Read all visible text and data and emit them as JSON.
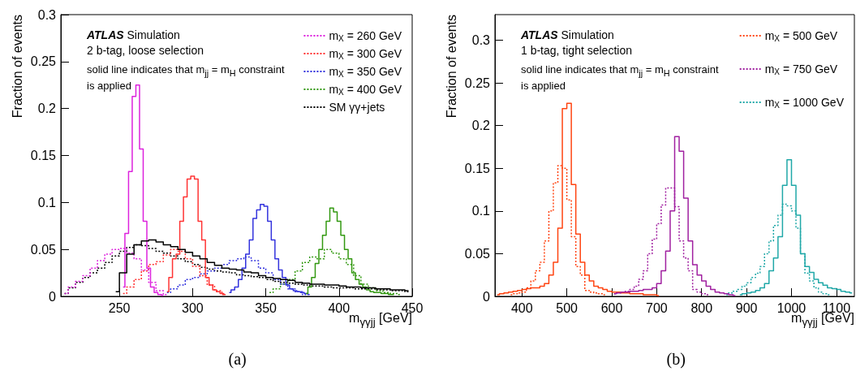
{
  "chart_data": [
    {
      "type": "step",
      "title": "ATLAS Simulation",
      "subtitle": "2 b-tag, loose selection",
      "annotations": [
        "solid line indicates that m$_{jj}$ = m$_{H}$ constraint is applied",
        "(a)"
      ],
      "xlabel": "m$_{γγjj}$ [GeV]",
      "ylabel": "Fraction of events",
      "xlim": [
        210,
        450
      ],
      "xticks": [
        250,
        300,
        350,
        400,
        450
      ],
      "ylim": [
        0,
        0.3
      ],
      "yticks": [
        0,
        0.05,
        0.1,
        0.15,
        0.2,
        0.25,
        0.3
      ],
      "grid": false,
      "legend": "top right",
      "series": [
        {
          "name": "m$_{X}$ = 260 GeV",
          "color": "#dd22dd",
          "line_style": "dashed",
          "x": [
            212.5,
            217.5,
            222.5,
            227.5,
            232.5,
            237.5,
            242.5,
            247.5,
            252.5,
            257.5,
            262.5,
            267.5,
            272.5,
            277.5,
            282.5
          ],
          "values": [
            0.003,
            0.01,
            0.016,
            0.022,
            0.03,
            0.038,
            0.045,
            0.05,
            0.051,
            0.046,
            0.04,
            0.028,
            0.015,
            0.006,
            0.002
          ]
        },
        {
          "name": "m$_{X}$ = 300 GeV",
          "color": "#ff3333",
          "line_style": "dashed",
          "x": [
            252.5,
            257.5,
            262.5,
            267.5,
            272.5,
            277.5,
            282.5,
            287.5,
            292.5,
            297.5,
            302.5,
            307.5,
            312.5,
            317.5,
            322.5
          ],
          "values": [
            0.003,
            0.01,
            0.018,
            0.027,
            0.034,
            0.037,
            0.044,
            0.05,
            0.048,
            0.04,
            0.032,
            0.022,
            0.012,
            0.006,
            0.002
          ]
        },
        {
          "name": "m$_{X}$ = 350 GeV",
          "color": "#3333dd",
          "line_style": "dashed",
          "x": [
            282.5,
            287.5,
            292.5,
            297.5,
            302.5,
            307.5,
            312.5,
            317.5,
            322.5,
            327.5,
            332.5,
            337.5,
            342.5,
            347.5,
            352.5,
            357.5,
            362.5,
            367.5,
            372.5,
            377.5
          ],
          "values": [
            0.004,
            0.008,
            0.012,
            0.018,
            0.02,
            0.024,
            0.027,
            0.03,
            0.034,
            0.038,
            0.04,
            0.042,
            0.038,
            0.03,
            0.025,
            0.018,
            0.013,
            0.008,
            0.005,
            0.002
          ]
        },
        {
          "name": "m$_{X}$ = 400 GeV",
          "color": "#339911",
          "line_style": "dashed",
          "x": [
            352.5,
            357.5,
            362.5,
            367.5,
            372.5,
            377.5,
            382.5,
            387.5,
            392.5,
            397.5,
            402.5,
            407.5,
            412.5,
            417.5,
            422.5,
            427.5,
            432.5,
            437.5,
            442.5
          ],
          "values": [
            0.004,
            0.008,
            0.013,
            0.018,
            0.027,
            0.036,
            0.042,
            0.04,
            0.05,
            0.046,
            0.04,
            0.034,
            0.022,
            0.013,
            0.009,
            0.006,
            0.004,
            0.003,
            0.002
          ]
        },
        {
          "name": "SM γγ+jets",
          "color": "#000000",
          "line_style": "dashed",
          "x": [
            212.5,
            217.5,
            222.5,
            227.5,
            232.5,
            237.5,
            242.5,
            247.5,
            252.5,
            257.5,
            262.5,
            267.5,
            272.5,
            277.5,
            282.5,
            287.5,
            292.5,
            297.5,
            302.5,
            307.5,
            312.5,
            317.5,
            322.5,
            327.5,
            332.5,
            337.5,
            342.5,
            347.5,
            352.5,
            357.5,
            362.5,
            367.5,
            372.5,
            377.5,
            382.5,
            387.5,
            392.5,
            397.5,
            402.5,
            407.5,
            412.5,
            417.5,
            422.5,
            427.5,
            432.5,
            437.5,
            442.5,
            447.5
          ],
          "values": [
            0.003,
            0.009,
            0.015,
            0.02,
            0.025,
            0.03,
            0.036,
            0.043,
            0.048,
            0.052,
            0.055,
            0.054,
            0.051,
            0.048,
            0.046,
            0.043,
            0.04,
            0.037,
            0.034,
            0.031,
            0.029,
            0.027,
            0.026,
            0.025,
            0.023,
            0.022,
            0.021,
            0.02,
            0.018,
            0.016,
            0.015,
            0.014,
            0.013,
            0.012,
            0.011,
            0.011,
            0.01,
            0.009,
            0.009,
            0.009,
            0.008,
            0.008,
            0.008,
            0.007,
            0.007,
            0.006,
            0.006,
            0.005
          ]
        },
        {
          "color": "#dd22dd",
          "line_style": "solid",
          "x": [
            252.5,
            255,
            257.5,
            260,
            262.5,
            265,
            267.5,
            270,
            272.5,
            275,
            277.5,
            280
          ],
          "values": [
            0.01,
            0.067,
            0.133,
            0.213,
            0.225,
            0.157,
            0.08,
            0.03,
            0.01,
            0.004,
            0.002,
            0.001
          ]
        },
        {
          "color": "#ff3333",
          "line_style": "solid",
          "x": [
            282.5,
            285,
            287.5,
            290,
            292.5,
            295,
            297.5,
            300,
            302.5,
            305,
            307.5,
            310,
            312.5,
            315,
            317.5,
            320,
            322.5
          ],
          "values": [
            0.005,
            0.02,
            0.04,
            0.045,
            0.08,
            0.106,
            0.125,
            0.128,
            0.125,
            0.08,
            0.06,
            0.02,
            0.012,
            0.007,
            0.005,
            0.003,
            0.002
          ]
        },
        {
          "color": "#3333dd",
          "line_style": "solid",
          "x": [
            325,
            327.5,
            330,
            332.5,
            335,
            337.5,
            340,
            342.5,
            345,
            347.5,
            350,
            352.5,
            355,
            357.5,
            360,
            362.5,
            365,
            367.5,
            370,
            372.5,
            375,
            377.5,
            380
          ],
          "values": [
            0.004,
            0.007,
            0.01,
            0.018,
            0.03,
            0.045,
            0.06,
            0.083,
            0.092,
            0.098,
            0.096,
            0.08,
            0.06,
            0.04,
            0.028,
            0.02,
            0.012,
            0.008,
            0.006,
            0.005,
            0.004,
            0.003,
            0.002
          ]
        },
        {
          "color": "#339911",
          "line_style": "solid",
          "x": [
            377.5,
            380,
            382.5,
            385,
            387.5,
            390,
            392.5,
            395,
            397.5,
            400,
            402.5,
            405,
            407.5,
            410,
            412.5,
            415,
            417.5,
            420,
            422.5,
            425,
            427.5,
            430,
            432.5,
            435,
            437.5
          ],
          "values": [
            0.003,
            0.01,
            0.02,
            0.035,
            0.05,
            0.065,
            0.08,
            0.094,
            0.09,
            0.08,
            0.065,
            0.05,
            0.04,
            0.025,
            0.018,
            0.013,
            0.01,
            0.007,
            0.005,
            0.004,
            0.004,
            0.003,
            0.003,
            0.002,
            0.002
          ]
        },
        {
          "color": "#000000",
          "line_style": "solid",
          "x": [
            247.5,
            252.5,
            257.5,
            262.5,
            267.5,
            272.5,
            277.5,
            282.5,
            287.5,
            292.5,
            297.5,
            302.5,
            307.5,
            312.5,
            317.5,
            322.5,
            327.5,
            332.5,
            337.5,
            342.5,
            347.5,
            352.5,
            357.5,
            362.5,
            367.5,
            372.5,
            377.5,
            382.5,
            387.5,
            392.5,
            397.5,
            402.5,
            407.5,
            412.5,
            417.5,
            422.5,
            427.5,
            432.5,
            437.5,
            442.5,
            447.5
          ],
          "values": [
            0.005,
            0.025,
            0.045,
            0.055,
            0.059,
            0.06,
            0.058,
            0.055,
            0.053,
            0.05,
            0.047,
            0.043,
            0.04,
            0.036,
            0.033,
            0.03,
            0.029,
            0.028,
            0.026,
            0.025,
            0.022,
            0.02,
            0.019,
            0.018,
            0.017,
            0.015,
            0.014,
            0.013,
            0.013,
            0.012,
            0.012,
            0.011,
            0.01,
            0.01,
            0.009,
            0.009,
            0.008,
            0.008,
            0.007,
            0.007,
            0.006
          ]
        }
      ]
    },
    {
      "type": "step",
      "title": "ATLAS Simulation",
      "subtitle": "1 b-tag, tight selection",
      "annotations": [
        "solid line indicates that m$_{jj}$ = m$_{H}$ constraint is applied",
        "(b)"
      ],
      "xlabel": "m$_{γγjj}$ [GeV]",
      "ylabel": "Fraction of events",
      "xlim": [
        340,
        1140
      ],
      "xticks": [
        400,
        500,
        600,
        700,
        800,
        900,
        1000,
        1100
      ],
      "ylim": [
        0,
        0.33
      ],
      "yticks": [
        0,
        0.05,
        0.1,
        0.15,
        0.2,
        0.25,
        0.3
      ],
      "grid": false,
      "legend": "top right",
      "series": [
        {
          "name": "m$_{X}$ = 500 GeV",
          "color": "#ff4411",
          "line_style": "dashed",
          "x": [
            375,
            385,
            395,
            405,
            415,
            425,
            435,
            445,
            455,
            465,
            475,
            485,
            495,
            505,
            515,
            525,
            535,
            545,
            555,
            565,
            575,
            585
          ],
          "values": [
            0.002,
            0.003,
            0.004,
            0.005,
            0.01,
            0.018,
            0.03,
            0.04,
            0.065,
            0.1,
            0.133,
            0.153,
            0.15,
            0.113,
            0.07,
            0.035,
            0.025,
            0.007,
            0.005,
            0.004,
            0.003,
            0.002
          ]
        },
        {
          "name": "m$_{X}$ = 750 GeV",
          "color": "#a020a0",
          "line_style": "dashed",
          "x": [
            605,
            615,
            625,
            635,
            645,
            655,
            665,
            675,
            685,
            695,
            705,
            715,
            725,
            735,
            745,
            755,
            765,
            775,
            785,
            795,
            805,
            815
          ],
          "values": [
            0.003,
            0.004,
            0.005,
            0.006,
            0.008,
            0.012,
            0.02,
            0.03,
            0.05,
            0.067,
            0.085,
            0.107,
            0.127,
            0.127,
            0.105,
            0.065,
            0.045,
            0.03,
            0.008,
            0.005,
            0.003,
            0.002
          ]
        },
        {
          "name": "m$_{X}$ = 1000 GeV",
          "color": "#20a8a8",
          "line_style": "dashed",
          "x": [
            855,
            865,
            875,
            885,
            895,
            905,
            915,
            925,
            935,
            945,
            955,
            965,
            975,
            985,
            995,
            1005,
            1015,
            1025,
            1035,
            1045,
            1055,
            1065,
            1075,
            1085
          ],
          "values": [
            0.002,
            0.004,
            0.006,
            0.008,
            0.012,
            0.016,
            0.022,
            0.027,
            0.035,
            0.05,
            0.065,
            0.083,
            0.095,
            0.108,
            0.106,
            0.1,
            0.08,
            0.05,
            0.027,
            0.018,
            0.01,
            0.005,
            0.003,
            0.002
          ]
        },
        {
          "color": "#ff4411",
          "line_style": "solid",
          "x": [
            345,
            355,
            365,
            375,
            385,
            395,
            405,
            415,
            425,
            435,
            445,
            455,
            465,
            475,
            485,
            495,
            505,
            515,
            525,
            535,
            545,
            555,
            565,
            575,
            585,
            595,
            605,
            615,
            625,
            635,
            645,
            655,
            665,
            675,
            685,
            695,
            705
          ],
          "values": [
            0.002,
            0.003,
            0.004,
            0.005,
            0.006,
            0.007,
            0.008,
            0.009,
            0.01,
            0.01,
            0.012,
            0.015,
            0.025,
            0.04,
            0.08,
            0.22,
            0.226,
            0.131,
            0.073,
            0.04,
            0.025,
            0.018,
            0.012,
            0.01,
            0.008,
            0.006,
            0.005,
            0.005,
            0.004,
            0.004,
            0.003,
            0.003,
            0.003,
            0.002,
            0.002,
            0.002,
            0.001
          ]
        },
        {
          "color": "#a020a0",
          "line_style": "solid",
          "x": [
            605,
            615,
            625,
            635,
            645,
            655,
            665,
            675,
            685,
            695,
            705,
            715,
            725,
            735,
            745,
            755,
            765,
            775,
            785,
            795,
            805,
            815,
            825,
            835,
            845,
            855,
            865,
            875
          ],
          "values": [
            0.003,
            0.004,
            0.005,
            0.005,
            0.006,
            0.006,
            0.007,
            0.008,
            0.008,
            0.01,
            0.015,
            0.03,
            0.053,
            0.1,
            0.187,
            0.17,
            0.115,
            0.065,
            0.037,
            0.025,
            0.018,
            0.012,
            0.008,
            0.005,
            0.004,
            0.003,
            0.002,
            0.001
          ]
        },
        {
          "color": "#20a8a8",
          "line_style": "solid",
          "x": [
            885,
            895,
            905,
            915,
            925,
            935,
            945,
            955,
            965,
            975,
            985,
            995,
            1005,
            1015,
            1025,
            1035,
            1045,
            1055,
            1065,
            1075,
            1085,
            1095,
            1105,
            1115,
            1125,
            1135
          ],
          "values": [
            0.002,
            0.003,
            0.004,
            0.005,
            0.007,
            0.01,
            0.015,
            0.03,
            0.045,
            0.07,
            0.13,
            0.16,
            0.13,
            0.095,
            0.05,
            0.035,
            0.028,
            0.02,
            0.016,
            0.013,
            0.01,
            0.009,
            0.008,
            0.006,
            0.005,
            0.004
          ]
        }
      ]
    }
  ]
}
